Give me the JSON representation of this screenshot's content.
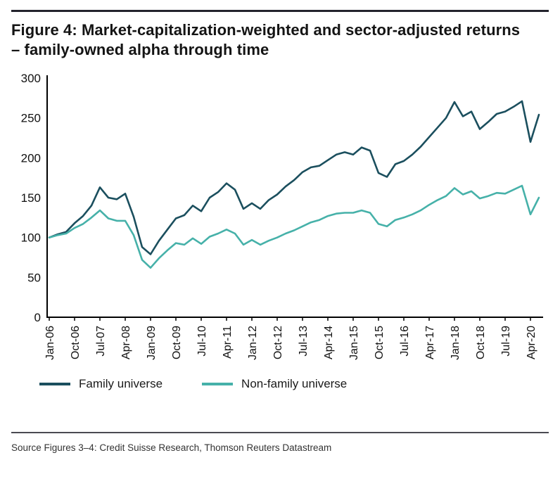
{
  "figure": {
    "title": "Figure 4: Market-capitalization-weighted and sector-adjusted returns – family-owned alpha through time"
  },
  "source_note": "Source Figures 3–4: Credit Suisse Research, Thomson Reuters Datastream",
  "colors": {
    "family_line": "#1b4f5e",
    "non_family_line": "#46b1a9",
    "rule": "#23232d",
    "axis": "#000000"
  },
  "chart_data": {
    "type": "line",
    "title": "Figure 4: Market-capitalization-weighted and sector-adjusted returns – family-owned alpha through time",
    "xlabel": "",
    "ylabel": "",
    "ylim": [
      0,
      300
    ],
    "y_ticks": [
      0,
      50,
      100,
      150,
      200,
      250,
      300
    ],
    "grid": false,
    "legend_position": "bottom",
    "x_tick_labels": [
      "Jan-06",
      "Oct-06",
      "Jul-07",
      "Apr-08",
      "Jan-09",
      "Oct-09",
      "Jul-10",
      "Apr-11",
      "Jan-12",
      "Oct-12",
      "Jul-13",
      "Apr-14",
      "Jan-15",
      "Oct-15",
      "Jul-16",
      "Apr-17",
      "Jan-18",
      "Oct-18",
      "Jul-19",
      "Apr-20"
    ],
    "categories": [
      "Jan-06",
      "Apr-06",
      "Jul-06",
      "Oct-06",
      "Jan-07",
      "Apr-07",
      "Jul-07",
      "Oct-07",
      "Jan-08",
      "Apr-08",
      "Jul-08",
      "Oct-08",
      "Jan-09",
      "Apr-09",
      "Jul-09",
      "Oct-09",
      "Jan-10",
      "Apr-10",
      "Jul-10",
      "Oct-10",
      "Jan-11",
      "Apr-11",
      "Jul-11",
      "Oct-11",
      "Jan-12",
      "Apr-12",
      "Jul-12",
      "Oct-12",
      "Jan-13",
      "Apr-13",
      "Jul-13",
      "Oct-13",
      "Jan-14",
      "Apr-14",
      "Jul-14",
      "Oct-14",
      "Jan-15",
      "Apr-15",
      "Jul-15",
      "Oct-15",
      "Jan-16",
      "Apr-16",
      "Jul-16",
      "Oct-16",
      "Jan-17",
      "Apr-17",
      "Jul-17",
      "Oct-17",
      "Jan-18",
      "Apr-18",
      "Jul-18",
      "Oct-18",
      "Jan-19",
      "Apr-19",
      "Jul-19",
      "Oct-19",
      "Jan-20",
      "Apr-20",
      "Jul-20"
    ],
    "series": [
      {
        "name": "Family universe",
        "color": "#1b4f5e",
        "values": [
          100,
          104,
          107,
          118,
          127,
          140,
          163,
          150,
          148,
          155,
          126,
          88,
          79,
          96,
          110,
          124,
          128,
          140,
          133,
          150,
          157,
          168,
          160,
          136,
          143,
          136,
          147,
          154,
          164,
          172,
          182,
          188,
          190,
          197,
          204,
          207,
          204,
          213,
          209,
          181,
          176,
          192,
          196,
          204,
          214,
          226,
          238,
          250,
          270,
          252,
          258,
          236,
          245,
          255,
          258,
          264,
          271,
          220,
          254
        ]
      },
      {
        "name": "Non-family universe",
        "color": "#46b1a9",
        "values": [
          100,
          103,
          105,
          112,
          117,
          125,
          134,
          124,
          121,
          121,
          103,
          72,
          62,
          74,
          84,
          93,
          91,
          99,
          92,
          101,
          105,
          110,
          105,
          91,
          97,
          91,
          96,
          100,
          105,
          109,
          114,
          119,
          122,
          127,
          130,
          131,
          131,
          134,
          131,
          117,
          114,
          122,
          125,
          129,
          134,
          141,
          147,
          152,
          162,
          154,
          158,
          149,
          152,
          156,
          155,
          160,
          165,
          129,
          150
        ]
      }
    ]
  }
}
